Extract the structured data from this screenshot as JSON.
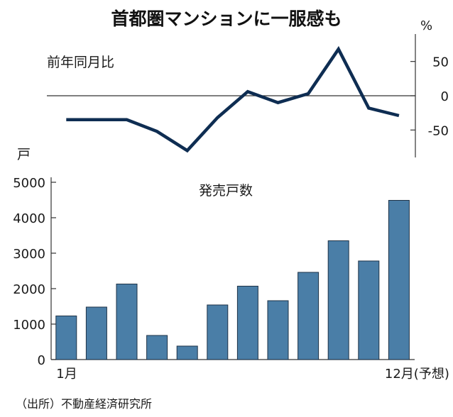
{
  "title": "首都圏マンションに一服感も",
  "source": "（出所）不動産経済研究所",
  "colors": {
    "line": "#0e2d52",
    "bar": "#4a7ea7",
    "bar_edge": "#1f3347",
    "axis": "#333333",
    "text": "#1a1a1a"
  },
  "chart_data": [
    {
      "type": "line",
      "label": "前年同月比",
      "unit": "%",
      "ylim": [
        -90,
        90
      ],
      "yticks": [
        50,
        0,
        -50
      ],
      "ytick_labels": [
        "50",
        "0",
        "-50"
      ],
      "y_axis_side": "right",
      "grid": false,
      "zero_line": true,
      "x": [
        1,
        2,
        3,
        4,
        5,
        6,
        7,
        8,
        9,
        10,
        11,
        12
      ],
      "values": [
        -35,
        -35,
        -35,
        -52,
        -80,
        -32,
        6,
        -10,
        3,
        68,
        -18,
        -29
      ]
    },
    {
      "type": "bar",
      "label": "発売戸数",
      "unit": "戸",
      "ylim": [
        0,
        5500
      ],
      "yticks": [
        0,
        1000,
        2000,
        3000,
        4000,
        5000
      ],
      "ytick_labels": [
        "0",
        "1000",
        "2000",
        "3000",
        "4000",
        "5000"
      ],
      "y_axis_side": "left",
      "grid": false,
      "categories": [
        "1",
        "2",
        "3",
        "4",
        "5",
        "6",
        "7",
        "8",
        "9",
        "10",
        "11",
        "12"
      ],
      "values": [
        1230,
        1480,
        2130,
        680,
        380,
        1540,
        2070,
        1660,
        2460,
        3350,
        2780,
        4490
      ],
      "x_labels": [
        {
          "index": 0,
          "text": "1月"
        },
        {
          "index": 11,
          "text": "12月(予想)"
        }
      ]
    }
  ]
}
